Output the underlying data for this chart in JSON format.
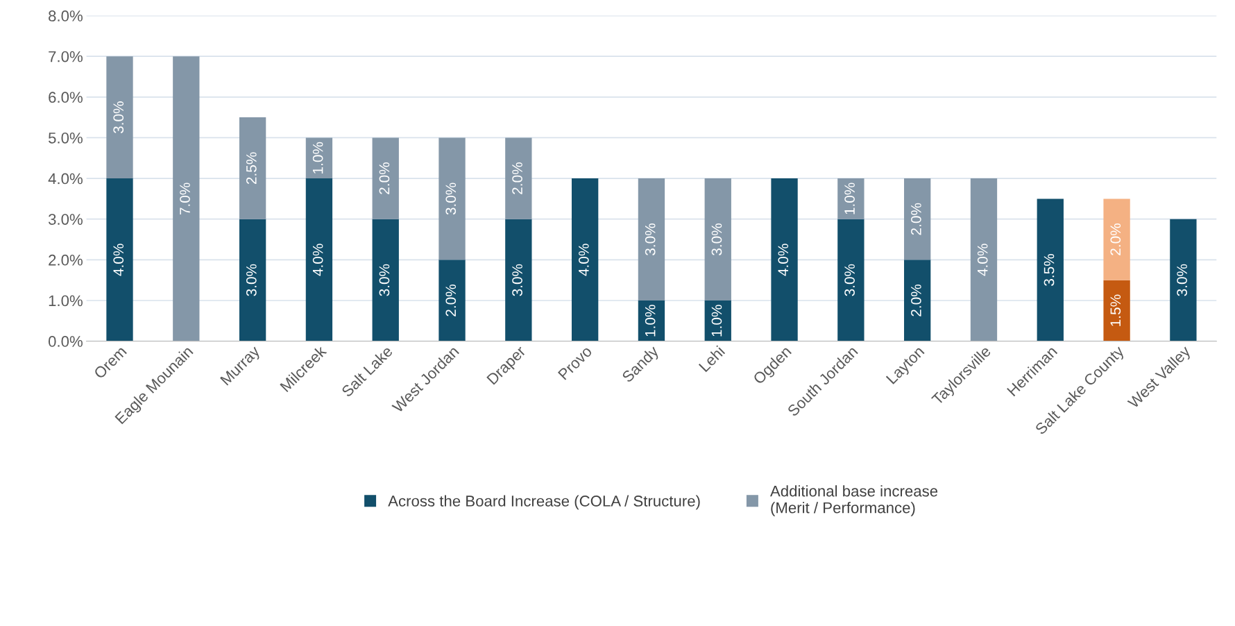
{
  "chart_data": {
    "type": "bar",
    "stacked": true,
    "categories": [
      "Orem",
      "Eagle Mounain",
      "Murray",
      "Milcreek",
      "Salt Lake",
      "West Jordan",
      "Draper",
      "Provo",
      "Sandy",
      "Lehi",
      "Ogden",
      "South Jordan",
      "Layton",
      "Taylorsville",
      "Herriman",
      "Salt Lake County",
      "West Valley"
    ],
    "series": [
      {
        "name": "Across the Board Increase (COLA / Structure)",
        "color": "#124f6b",
        "colors": [
          "#124f6b",
          "#124f6b",
          "#124f6b",
          "#124f6b",
          "#124f6b",
          "#124f6b",
          "#124f6b",
          "#124f6b",
          "#124f6b",
          "#124f6b",
          "#124f6b",
          "#124f6b",
          "#124f6b",
          "#124f6b",
          "#124f6b",
          "#c55a11",
          "#124f6b"
        ],
        "values": [
          4.0,
          null,
          3.0,
          4.0,
          3.0,
          2.0,
          3.0,
          4.0,
          1.0,
          1.0,
          4.0,
          3.0,
          2.0,
          null,
          3.5,
          1.5,
          3.0
        ],
        "value_labels": [
          "4.0%",
          null,
          "3.0%",
          "4.0%",
          "3.0%",
          "2.0%",
          "3.0%",
          "4.0%",
          "1.0%",
          "1.0%",
          "4.0%",
          "3.0%",
          "2.0%",
          null,
          "3.5%",
          "1.5%",
          "3.0%"
        ]
      },
      {
        "name": "Additional base increase\n(Merit / Performance)",
        "color": "#8497a8",
        "colors": [
          "#8497a8",
          "#8497a8",
          "#8497a8",
          "#8497a8",
          "#8497a8",
          "#8497a8",
          "#8497a8",
          "#8497a8",
          "#8497a8",
          "#8497a8",
          "#8497a8",
          "#8497a8",
          "#8497a8",
          "#8497a8",
          "#8497a8",
          "#f4b183",
          "#8497a8"
        ],
        "values": [
          3.0,
          7.0,
          2.5,
          1.0,
          2.0,
          3.0,
          2.0,
          null,
          3.0,
          3.0,
          null,
          1.0,
          2.0,
          4.0,
          null,
          2.0,
          null
        ],
        "value_labels": [
          "3.0%",
          "7.0%",
          "2.5%",
          "1.0%",
          "2.0%",
          "3.0%",
          "2.0%",
          null,
          "3.0%",
          "3.0%",
          null,
          "1.0%",
          "2.0%",
          "4.0%",
          null,
          "2.0%",
          null
        ]
      }
    ],
    "ylim": [
      0,
      8
    ],
    "yticks": [
      {
        "value": 0,
        "label": "0.0%"
      },
      {
        "value": 1,
        "label": "1.0%"
      },
      {
        "value": 2,
        "label": "2.0%"
      },
      {
        "value": 3,
        "label": "3.0%"
      },
      {
        "value": 4,
        "label": "4.0%"
      },
      {
        "value": 5,
        "label": "5.0%"
      },
      {
        "value": 6,
        "label": "6.0%"
      },
      {
        "value": 7,
        "label": "7.0%"
      },
      {
        "value": 8,
        "label": "8.0%"
      }
    ],
    "grid": "y",
    "legend": "bottom"
  }
}
